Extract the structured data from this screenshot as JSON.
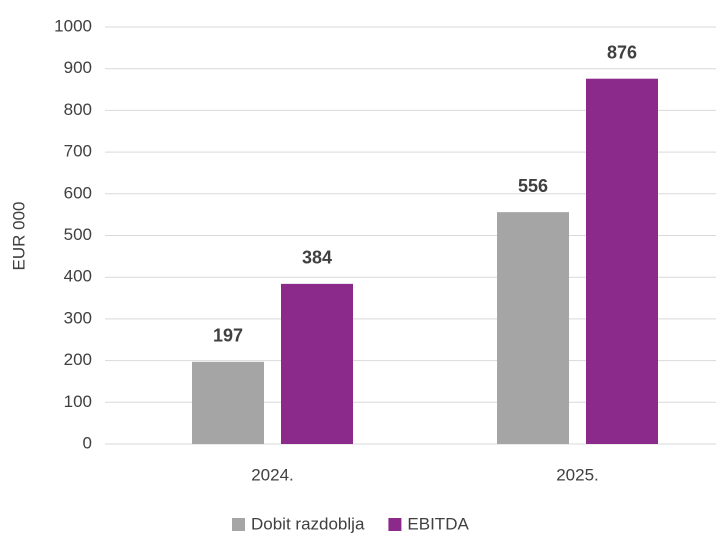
{
  "chart_data": {
    "type": "bar",
    "y_label": "EUR 000",
    "categories": [
      "2024.",
      "2025."
    ],
    "series": [
      {
        "name": "Dobit razdoblja",
        "color": "#a5a5a5",
        "values": [
          197,
          556
        ]
      },
      {
        "name": "EBITDA",
        "color": "#8b2a8b",
        "values": [
          384,
          876
        ]
      }
    ],
    "ylim": [
      0,
      1000
    ],
    "yticks": [
      0,
      100,
      200,
      300,
      400,
      500,
      600,
      700,
      800,
      900,
      1000
    ],
    "grid": true,
    "legend": "bottom"
  }
}
